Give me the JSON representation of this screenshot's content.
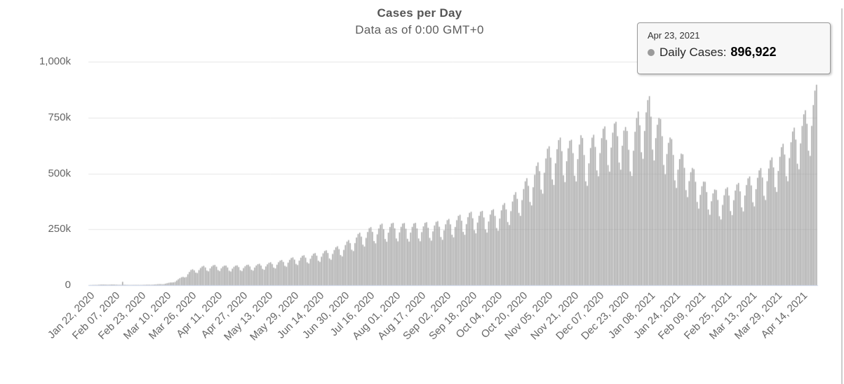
{
  "title": "Cases per Day",
  "subtitle": "Data as of 0:00 GMT+0",
  "tooltip": {
    "date": "Apr 23, 2021",
    "series_label": "Daily Cases:",
    "value": "896,922"
  },
  "colors": {
    "bar": "#9d9d9d",
    "gridline": "#e6e6e6",
    "axis_line": "#ccd6eb",
    "axis_label": "#666666",
    "title_text": "#555555",
    "tooltip_bg": "#f7f7f7",
    "tooltip_border": "#9a9a9a",
    "tooltip_marker": "#9b9b9b",
    "divider": "#cccccc"
  },
  "y_axis": {
    "tick_labels": [
      "1,000k",
      "750k",
      "500k",
      "250k",
      "0"
    ]
  },
  "x_axis": {
    "tick_interval_days": 16,
    "tick_labels": [
      "Jan 22, 2020",
      "Feb 07, 2020",
      "Feb 23, 2020",
      "Mar 10, 2020",
      "Mar 26, 2020",
      "Apr 11, 2020",
      "Apr 27, 2020",
      "May 13, 2020",
      "May 29, 2020",
      "Jun 14, 2020",
      "Jun 30, 2020",
      "Jul 16, 2020",
      "Aug 01, 2020",
      "Aug 17, 2020",
      "Sep 02, 2020",
      "Sep 18, 2020",
      "Oct 04, 2020",
      "Oct 20, 2020",
      "Nov 05, 2020",
      "Nov 21, 2020",
      "Dec 07, 2020",
      "Dec 23, 2020",
      "Jan 08, 2021",
      "Jan 24, 2021",
      "Feb 09, 2021",
      "Feb 25, 2021",
      "Mar 13, 2021",
      "Mar 29, 2021",
      "Apr 14, 2021"
    ]
  },
  "chart_data": {
    "type": "bar",
    "series_name": "Daily Cases",
    "title": "Cases per Day",
    "subtitle": "Data as of 0:00 GMT+0",
    "start_date": "Jan 22, 2020",
    "end_date": "Apr 23, 2021",
    "n_days": 458,
    "unit": "thousands of cases",
    "ylim_k": [
      0,
      1000
    ],
    "grid": true,
    "legend": false,
    "envelope_anchors_day_valuek": [
      [
        0,
        0.5
      ],
      [
        8,
        2.8
      ],
      [
        14,
        3.0
      ],
      [
        20,
        2.0
      ],
      [
        23,
        1.6
      ],
      [
        30,
        1.3
      ],
      [
        38,
        2.2
      ],
      [
        46,
        5
      ],
      [
        52,
        12
      ],
      [
        58,
        32
      ],
      [
        64,
        62
      ],
      [
        72,
        78
      ],
      [
        80,
        82
      ],
      [
        88,
        78
      ],
      [
        96,
        81
      ],
      [
        104,
        84
      ],
      [
        112,
        90
      ],
      [
        120,
        100
      ],
      [
        128,
        112
      ],
      [
        136,
        122
      ],
      [
        144,
        132
      ],
      [
        152,
        146
      ],
      [
        160,
        168
      ],
      [
        168,
        205
      ],
      [
        176,
        232
      ],
      [
        184,
        248
      ],
      [
        192,
        252
      ],
      [
        200,
        250
      ],
      [
        208,
        252
      ],
      [
        216,
        256
      ],
      [
        224,
        262
      ],
      [
        232,
        282
      ],
      [
        240,
        296
      ],
      [
        248,
        300
      ],
      [
        256,
        308
      ],
      [
        264,
        345
      ],
      [
        272,
        405
      ],
      [
        280,
        475
      ],
      [
        288,
        555
      ],
      [
        296,
        595
      ],
      [
        304,
        585
      ],
      [
        309,
        610
      ],
      [
        312,
        560
      ],
      [
        316,
        600
      ],
      [
        320,
        625
      ],
      [
        328,
        655
      ],
      [
        336,
        665
      ],
      [
        339,
        600
      ],
      [
        342,
        640
      ],
      [
        345,
        700
      ],
      [
        348,
        725
      ],
      [
        352,
        762
      ],
      [
        356,
        700
      ],
      [
        360,
        660
      ],
      [
        368,
        565
      ],
      [
        376,
        505
      ],
      [
        384,
        430
      ],
      [
        392,
        395
      ],
      [
        396,
        372
      ],
      [
        400,
        392
      ],
      [
        408,
        412
      ],
      [
        416,
        442
      ],
      [
        424,
        482
      ],
      [
        432,
        535
      ],
      [
        440,
        605
      ],
      [
        448,
        685
      ],
      [
        452,
        725
      ],
      [
        457,
        808
      ]
    ],
    "weekday_multipliers_from_wed": [
      1.04,
      1.1,
      1.11,
      1.01,
      0.83,
      0.78,
      0.94
    ],
    "special_points_k": {
      "21": 15.1,
      "457": 896.922
    },
    "highlights": {
      "february_2020_spike": {
        "date": "Feb 12, 2020",
        "value_k": 15.1
      },
      "january_peak": {
        "date": "Jan 08, 2021",
        "value_k": 845
      },
      "february_2021_trough": {
        "date": "Feb 21, 2021",
        "value_k": 372
      },
      "last_point": {
        "date": "Apr 23, 2021",
        "value": 896922
      }
    }
  }
}
